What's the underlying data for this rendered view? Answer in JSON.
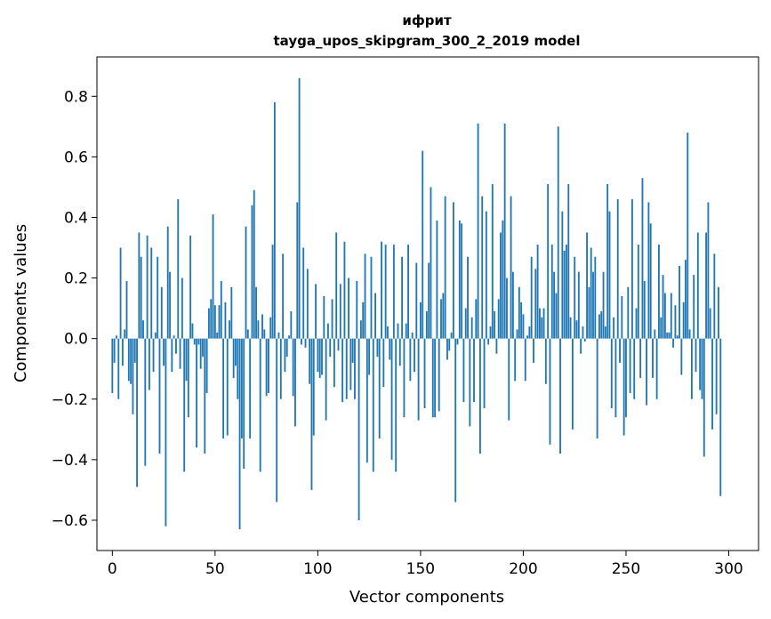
{
  "chart_data": {
    "type": "bar",
    "title": "ифрит",
    "subtitle": "tayga_upos_skipgram_300_2_2019 model",
    "xlabel": "Vector components",
    "ylabel": "Components values",
    "xlim": [
      -7.5,
      314.5
    ],
    "ylim": [
      -0.7,
      0.93
    ],
    "xticks": [
      0,
      50,
      100,
      150,
      200,
      250,
      300
    ],
    "yticks": [
      -0.6,
      -0.4,
      -0.2,
      0.0,
      0.2,
      0.4,
      0.6,
      0.8
    ],
    "ytick_labels": [
      "−0.6",
      "−0.4",
      "−0.2",
      "0.0",
      "0.2",
      "0.4",
      "0.6",
      "0.8"
    ],
    "grid": false,
    "color": "#1f77b4",
    "values": [
      -0.18,
      -0.08,
      0.01,
      -0.2,
      0.3,
      -0.09,
      0.03,
      0.19,
      -0.14,
      -0.15,
      -0.25,
      -0.08,
      -0.49,
      0.35,
      0.27,
      0.06,
      -0.42,
      0.34,
      -0.17,
      0.3,
      -0.11,
      0.02,
      0.27,
      -0.38,
      0.17,
      -0.09,
      -0.62,
      0.37,
      0.22,
      -0.11,
      0.01,
      -0.05,
      0.46,
      -0.1,
      0.2,
      -0.44,
      -0.14,
      -0.26,
      0.34,
      0.05,
      -0.02,
      -0.36,
      -0.02,
      -0.1,
      -0.06,
      -0.38,
      -0.18,
      0.1,
      0.13,
      0.41,
      0.11,
      0.02,
      0.11,
      0.19,
      -0.33,
      0.12,
      -0.32,
      0.06,
      0.17,
      -0.13,
      -0.09,
      -0.2,
      -0.63,
      -0.33,
      -0.43,
      0.37,
      0.03,
      -0.33,
      0.44,
      0.49,
      0.17,
      0.06,
      -0.44,
      0.08,
      0.03,
      -0.19,
      -0.18,
      0.07,
      0.31,
      0.78,
      -0.54,
      0.02,
      -0.2,
      0.28,
      -0.11,
      -0.06,
      0.01,
      0.09,
      -0.19,
      -0.29,
      0.45,
      0.86,
      -0.02,
      0.3,
      -0.03,
      0.23,
      -0.15,
      -0.5,
      -0.32,
      0.18,
      -0.11,
      -0.13,
      -0.12,
      0.14,
      -0.27,
      0.05,
      -0.06,
      0.13,
      -0.16,
      0.35,
      -0.04,
      0.18,
      -0.21,
      0.32,
      -0.2,
      0.2,
      -0.17,
      -0.08,
      -0.2,
      0.19,
      -0.6,
      0.06,
      0.12,
      0.28,
      -0.41,
      -0.12,
      0.27,
      -0.44,
      0.15,
      -0.06,
      -0.33,
      0.32,
      -0.16,
      0.31,
      0.04,
      -0.07,
      -0.4,
      0.31,
      -0.44,
      0.05,
      -0.09,
      0.27,
      -0.26,
      0.05,
      0.31,
      -0.14,
      0.02,
      -0.11,
      0.25,
      -0.27,
      0.12,
      0.62,
      -0.23,
      0.09,
      0.25,
      0.5,
      -0.26,
      -0.26,
      0.39,
      -0.24,
      0.13,
      0.15,
      0.47,
      -0.07,
      -0.04,
      0.02,
      0.45,
      -0.54,
      -0.02,
      0.39,
      0.38,
      -0.21,
      0.1,
      0.27,
      -0.29,
      0.07,
      -0.21,
      0.13,
      0.71,
      -0.38,
      0.47,
      -0.23,
      0.42,
      -0.02,
      0.04,
      0.51,
      0.09,
      -0.05,
      0.13,
      0.35,
      0.39,
      0.71,
      0.2,
      -0.27,
      0.47,
      0.22,
      -0.14,
      0.03,
      0.17,
      0.12,
      0.08,
      -0.14,
      0.01,
      0.04,
      0.27,
      -0.08,
      0.23,
      0.31,
      0.1,
      0.07,
      0.1,
      -0.15,
      0.51,
      -0.35,
      0.31,
      0.22,
      0.15,
      0.7,
      -0.38,
      0.42,
      0.29,
      0.31,
      0.51,
      0.07,
      -0.3,
      0.27,
      0.06,
      0.22,
      -0.05,
      0.04,
      -0.01,
      0.35,
      0.17,
      0.3,
      0.22,
      0.27,
      -0.33,
      0.08,
      0.09,
      0.22,
      0.04,
      0.51,
      0.42,
      -0.23,
      0.07,
      -0.26,
      0.46,
      -0.08,
      0.14,
      -0.32,
      -0.26,
      0.17,
      -0.18,
      0.46,
      -0.2,
      0.1,
      0.31,
      -0.13,
      0.53,
      0.19,
      -0.22,
      0.45,
      0.38,
      -0.13,
      0.03,
      -0.2,
      0.31,
      0.07,
      0.21,
      0.15,
      0.02,
      0.02,
      0.15,
      -0.03,
      0.11,
      0.01,
      0.24,
      -0.12,
      0.12,
      0.26,
      0.68,
      0.03,
      -0.2,
      0.21,
      -0.11,
      0.35,
      -0.17,
      -0.2,
      -0.39,
      0.35,
      0.45,
      0.1,
      -0.3,
      0.28,
      -0.25,
      0.17,
      -0.52
    ]
  }
}
